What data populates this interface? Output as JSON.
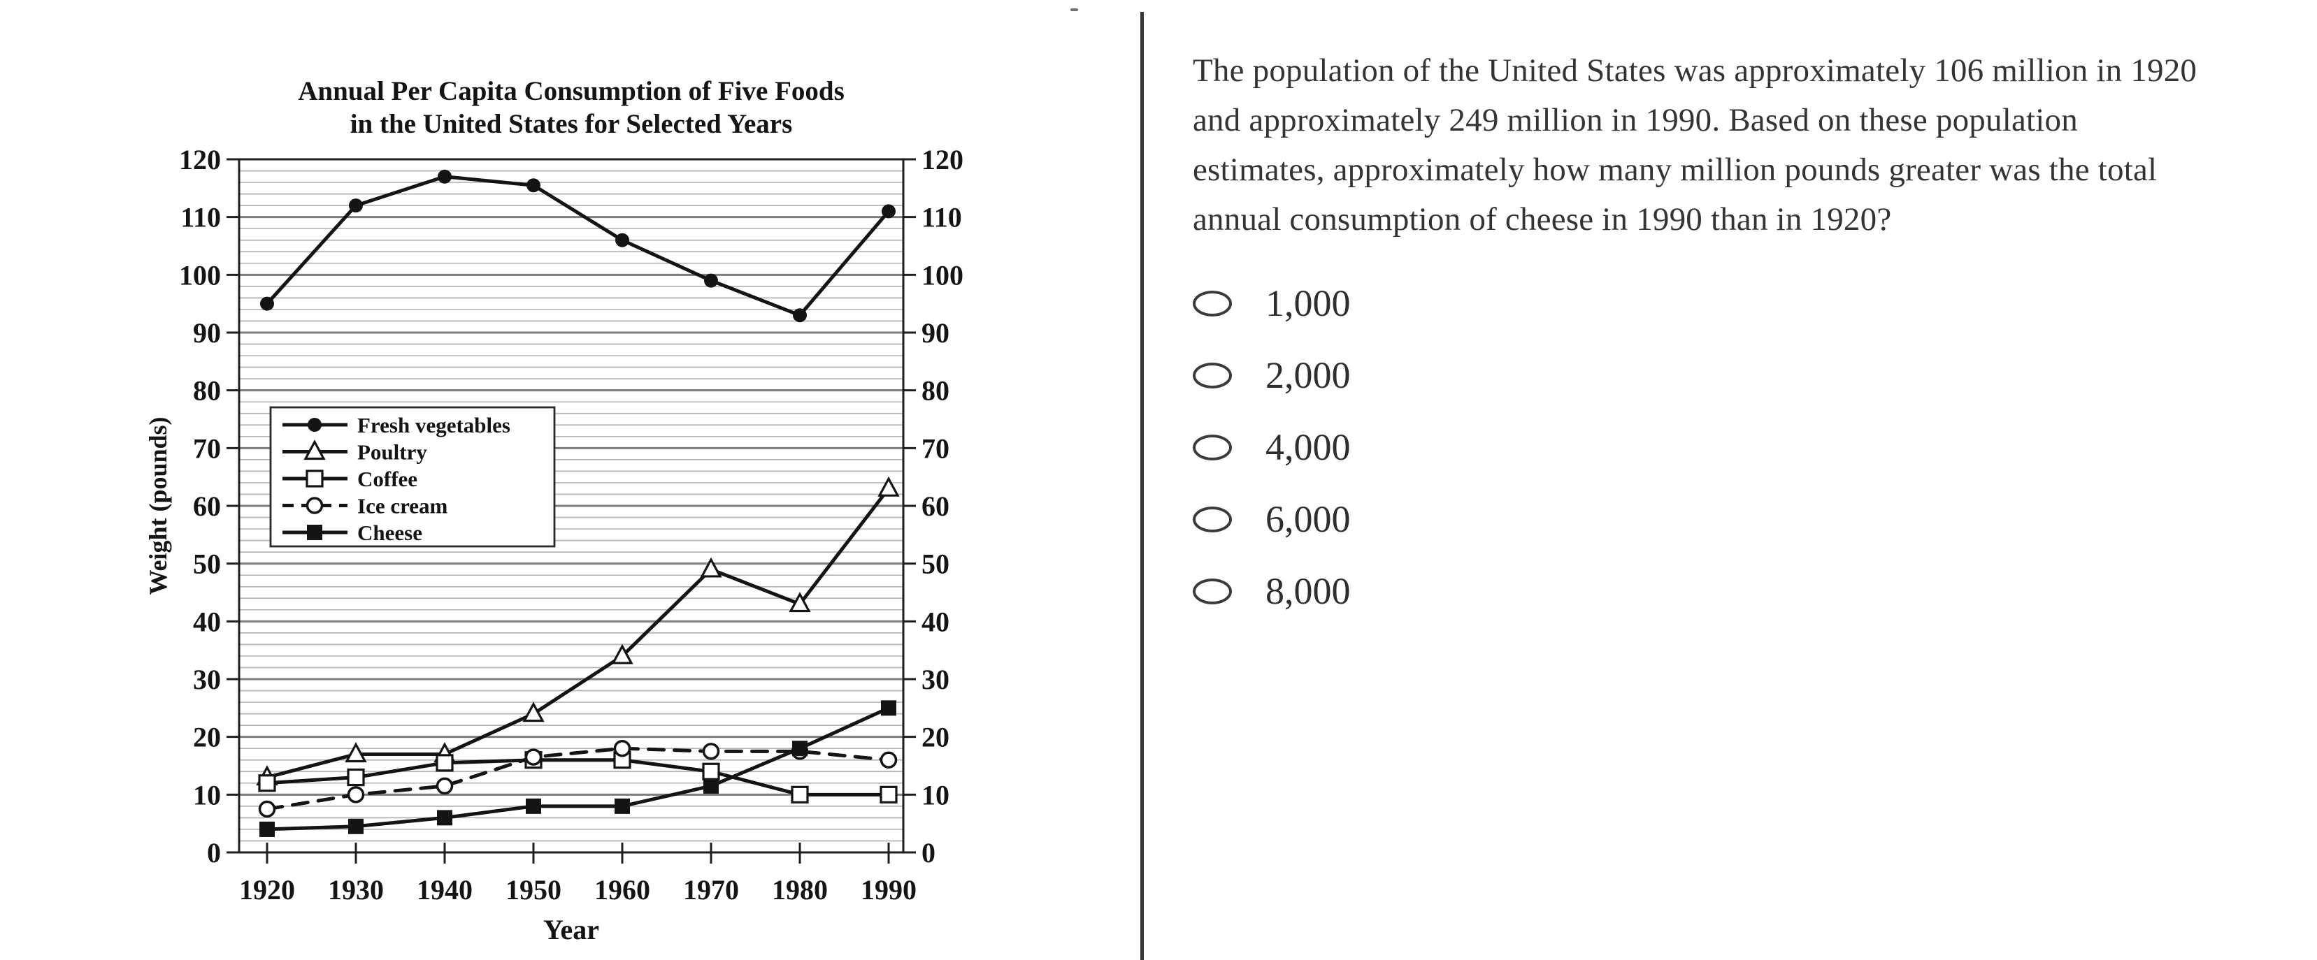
{
  "artifact": {
    "top_dash": "-"
  },
  "chart": {
    "title_line1": "Annual Per Capita Consumption of Five Foods",
    "title_line2": "in the United States for Selected Years",
    "ylabel": "Weight (pounds)",
    "xlabel": "Year"
  },
  "chart_data": {
    "type": "line",
    "title": "Annual Per Capita Consumption of Five Foods in the United States for Selected Years",
    "xlabel": "Year",
    "ylabel": "Weight (pounds)",
    "x": [
      1920,
      1930,
      1940,
      1950,
      1960,
      1970,
      1980,
      1990
    ],
    "series": [
      {
        "name": "Fresh vegetables",
        "marker": "circle-filled",
        "line": "solid",
        "values": [
          95,
          112,
          117,
          115.5,
          106,
          99,
          93,
          111
        ]
      },
      {
        "name": "Poultry",
        "marker": "triangle-open",
        "line": "solid",
        "values": [
          13,
          17,
          17,
          24,
          34,
          49,
          43,
          63
        ]
      },
      {
        "name": "Coffee",
        "marker": "square-open",
        "line": "solid",
        "values": [
          12,
          13,
          15.5,
          16,
          16,
          14,
          10,
          10
        ]
      },
      {
        "name": "Ice cream",
        "marker": "circle-open",
        "line": "dashed",
        "values": [
          7.5,
          10,
          11.5,
          16.5,
          18,
          17.5,
          17.5,
          16
        ]
      },
      {
        "name": "Cheese",
        "marker": "square-filled",
        "line": "solid",
        "values": [
          4,
          4.5,
          6,
          8,
          8,
          11.5,
          18,
          25
        ]
      }
    ],
    "ylim": [
      0,
      120
    ],
    "ytick_major_step": 10,
    "ytick_minor_step": 2,
    "grid": "horizontal",
    "legend_position": "inside-middle-left",
    "line_color": "#141414",
    "grid_major_color": "#7e7e7e",
    "grid_minor_color": "#b5b5b5"
  },
  "question": {
    "text": "The population of the United States was approximately 106 million in 1920 and approximately 249 million in 1990. Based on these population estimates, approximately how many million pounds greater was the total annual consumption of cheese in 1990 than in 1920?",
    "options": [
      {
        "label": "1,000",
        "selected": false
      },
      {
        "label": "2,000",
        "selected": false
      },
      {
        "label": "4,000",
        "selected": false
      },
      {
        "label": "6,000",
        "selected": false
      },
      {
        "label": "8,000",
        "selected": false
      }
    ]
  }
}
